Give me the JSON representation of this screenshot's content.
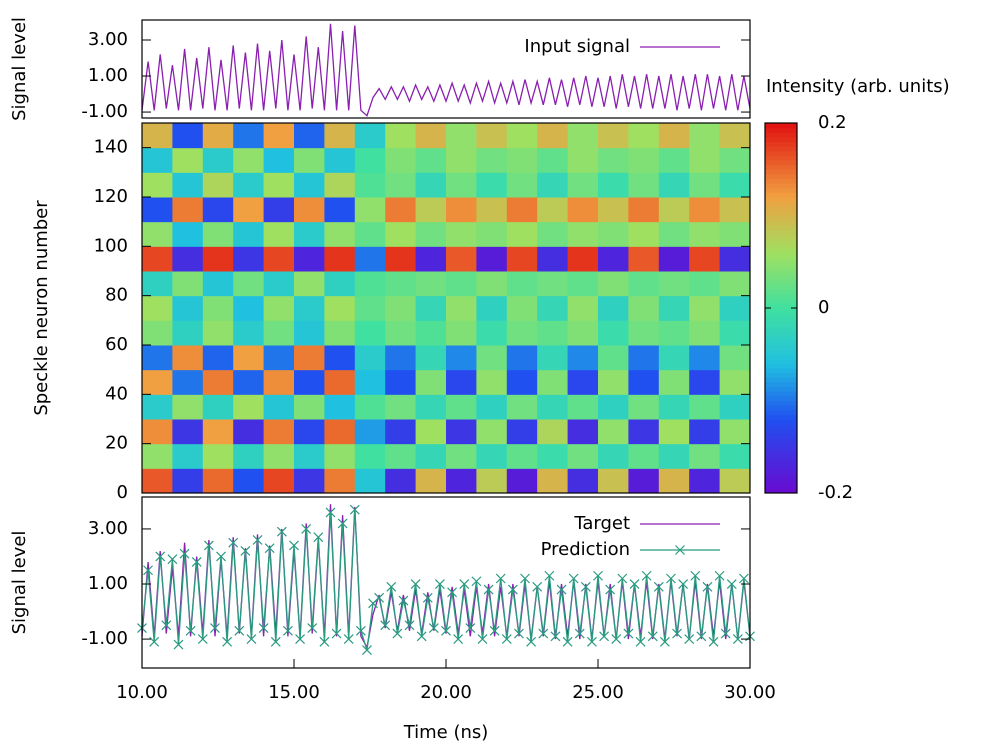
{
  "chart_data": [
    {
      "type": "line",
      "ylabel": "Signal level",
      "legend": "upper right",
      "xlim": [
        10,
        30
      ],
      "ylim": [
        -1.33,
        4.11
      ],
      "yticks": [
        {
          "value": 3,
          "label": "3.00"
        },
        {
          "value": 1,
          "label": "1.00"
        },
        {
          "value": -1,
          "label": "-1.00"
        }
      ],
      "x": [
        10,
        10.2,
        10.4,
        10.6,
        10.8,
        11,
        11.2,
        11.4,
        11.6,
        11.8,
        12,
        12.2,
        12.4,
        12.6,
        12.8,
        13,
        13.2,
        13.4,
        13.6,
        13.8,
        14,
        14.2,
        14.4,
        14.6,
        14.8,
        15,
        15.2,
        15.4,
        15.6,
        15.8,
        16,
        16.2,
        16.4,
        16.6,
        16.8,
        17,
        17.2,
        17.4,
        17.6,
        17.8,
        18,
        18.2,
        18.4,
        18.6,
        18.8,
        19,
        19.2,
        19.4,
        19.6,
        19.8,
        20,
        20.2,
        20.4,
        20.6,
        20.8,
        21,
        21.2,
        21.4,
        21.6,
        21.8,
        22,
        22.2,
        22.4,
        22.6,
        22.8,
        23,
        23.2,
        23.4,
        23.6,
        23.8,
        24,
        24.2,
        24.4,
        24.6,
        24.8,
        25,
        25.2,
        25.4,
        25.6,
        25.8,
        26,
        26.2,
        26.4,
        26.6,
        26.8,
        27,
        27.2,
        27.4,
        27.6,
        27.8,
        28,
        28.2,
        28.4,
        28.6,
        28.8,
        29,
        29.2,
        29.4,
        29.6,
        29.8,
        30
      ],
      "series": [
        {
          "name": "Input signal",
          "color": "#8a1fb0",
          "values": [
            -0.9,
            1.8,
            -0.9,
            2.2,
            -0.8,
            1.6,
            -0.9,
            2.5,
            -0.9,
            2.0,
            -0.8,
            2.6,
            -0.9,
            1.9,
            -0.9,
            2.7,
            -0.8,
            2.3,
            -0.9,
            2.8,
            -0.9,
            2.4,
            -0.8,
            3.0,
            -0.9,
            2.2,
            -0.9,
            3.2,
            -0.8,
            2.6,
            -0.9,
            3.9,
            -0.9,
            3.5,
            -0.9,
            3.8,
            -0.9,
            -1.2,
            -0.2,
            0.3,
            -0.3,
            0.4,
            -0.3,
            0.4,
            -0.4,
            0.5,
            -0.3,
            0.4,
            -0.4,
            0.5,
            -0.4,
            0.6,
            -0.4,
            0.5,
            -0.5,
            0.6,
            -0.4,
            0.7,
            -0.5,
            0.6,
            -0.5,
            0.7,
            -0.6,
            0.8,
            -0.5,
            0.7,
            -0.6,
            0.9,
            -0.6,
            0.8,
            -0.7,
            0.9,
            -0.6,
            1.0,
            -0.7,
            0.9,
            -0.7,
            1.0,
            -0.8,
            1.1,
            -0.7,
            1.0,
            -0.8,
            1.1,
            -0.8,
            1.0,
            -0.8,
            1.1,
            -0.9,
            1.0,
            -0.8,
            1.1,
            -0.9,
            1.1,
            -0.8,
            1.0,
            -0.9,
            1.1,
            -0.9,
            1.0,
            -0.8
          ]
        }
      ]
    },
    {
      "type": "heatmap",
      "ylabel": "Speckle neuron number",
      "colorbar_label": "Intensity (arb. units)",
      "xlim": [
        10,
        30
      ],
      "ylim": [
        0,
        150
      ],
      "yticks": [
        0,
        20,
        40,
        60,
        80,
        100,
        120,
        140
      ],
      "clim": [
        -0.2,
        0.2
      ],
      "cticks": [
        0.2,
        0,
        -0.2
      ],
      "x": [
        10,
        11,
        12,
        13,
        14,
        15,
        16,
        17,
        18,
        19,
        20,
        21,
        22,
        23,
        24,
        25,
        26,
        27,
        28,
        29
      ],
      "y": [
        0,
        10,
        20,
        30,
        40,
        50,
        60,
        70,
        80,
        90,
        100,
        110,
        120,
        130,
        140
      ],
      "z": [
        [
          0.16,
          -0.14,
          0.15,
          -0.12,
          0.17,
          -0.15,
          0.14,
          -0.05,
          -0.16,
          0.1,
          -0.17,
          0.08,
          -0.18,
          0.1,
          -0.16,
          0.09,
          -0.18,
          0.1,
          -0.17,
          0.08
        ],
        [
          0.05,
          -0.04,
          0.06,
          -0.03,
          0.05,
          -0.04,
          0.05,
          0.0,
          0.02,
          -0.02,
          0.03,
          -0.02,
          0.02,
          -0.01,
          0.03,
          -0.02,
          0.02,
          -0.02,
          0.03,
          -0.01
        ],
        [
          0.13,
          -0.15,
          0.12,
          -0.16,
          0.14,
          -0.13,
          0.15,
          -0.08,
          -0.14,
          0.06,
          -0.15,
          0.05,
          -0.14,
          0.07,
          -0.16,
          0.05,
          -0.15,
          0.06,
          -0.14,
          0.05
        ],
        [
          -0.04,
          0.05,
          -0.03,
          0.06,
          -0.05,
          0.04,
          -0.06,
          0.01,
          0.03,
          -0.02,
          0.02,
          -0.03,
          0.03,
          -0.02,
          0.02,
          -0.03,
          0.03,
          -0.02,
          0.02,
          -0.03
        ],
        [
          0.12,
          -0.1,
          0.14,
          -0.11,
          0.13,
          -0.12,
          0.15,
          -0.06,
          -0.12,
          0.04,
          -0.13,
          0.05,
          -0.12,
          0.04,
          -0.13,
          0.05,
          -0.12,
          0.04,
          -0.13,
          0.05
        ],
        [
          -0.1,
          0.13,
          -0.11,
          0.12,
          -0.1,
          0.14,
          -0.12,
          -0.04,
          -0.1,
          -0.02,
          -0.09,
          0.03,
          -0.1,
          -0.02,
          -0.09,
          0.02,
          -0.1,
          -0.02,
          -0.09,
          0.03
        ],
        [
          0.04,
          -0.03,
          0.05,
          -0.04,
          0.03,
          -0.05,
          0.04,
          0.0,
          0.03,
          0.01,
          0.04,
          -0.01,
          0.03,
          0.02,
          0.04,
          -0.01,
          0.03,
          0.02,
          0.04,
          -0.01
        ],
        [
          0.06,
          -0.05,
          0.04,
          -0.06,
          0.05,
          -0.04,
          0.06,
          0.02,
          0.04,
          -0.02,
          0.05,
          -0.03,
          0.04,
          -0.02,
          0.05,
          -0.03,
          0.04,
          -0.02,
          0.05,
          -0.03
        ],
        [
          -0.03,
          0.04,
          -0.05,
          0.03,
          -0.04,
          0.05,
          -0.03,
          0.01,
          0.02,
          0.03,
          0.02,
          0.04,
          0.02,
          0.03,
          0.02,
          0.04,
          0.02,
          0.03,
          0.02,
          0.04
        ],
        [
          0.17,
          -0.16,
          0.18,
          -0.15,
          0.17,
          -0.17,
          0.18,
          -0.1,
          0.18,
          -0.17,
          0.16,
          -0.18,
          0.17,
          -0.16,
          0.18,
          -0.17,
          0.16,
          -0.18,
          0.17,
          -0.16
        ],
        [
          0.05,
          -0.06,
          0.04,
          -0.05,
          0.06,
          -0.04,
          0.05,
          0.02,
          0.06,
          0.03,
          0.05,
          0.04,
          0.06,
          0.03,
          0.05,
          0.04,
          0.06,
          0.03,
          0.05,
          0.04
        ],
        [
          -0.12,
          0.14,
          -0.13,
          0.12,
          -0.14,
          0.13,
          -0.12,
          0.05,
          0.14,
          0.08,
          0.13,
          0.09,
          0.14,
          0.08,
          0.13,
          0.09,
          0.14,
          0.08,
          0.13,
          0.09
        ],
        [
          0.06,
          -0.05,
          0.07,
          -0.04,
          0.06,
          -0.05,
          0.07,
          0.01,
          0.03,
          -0.02,
          0.03,
          -0.01,
          0.03,
          -0.02,
          0.03,
          -0.01,
          0.03,
          -0.02,
          0.03,
          -0.01
        ],
        [
          -0.05,
          0.06,
          -0.04,
          0.05,
          -0.06,
          0.04,
          -0.05,
          0.0,
          0.04,
          0.02,
          0.05,
          0.03,
          0.04,
          0.02,
          0.05,
          0.03,
          0.04,
          0.02,
          0.05,
          0.03
        ],
        [
          0.1,
          -0.12,
          0.11,
          -0.1,
          0.12,
          -0.11,
          0.1,
          -0.04,
          0.06,
          0.1,
          0.05,
          0.09,
          0.06,
          0.1,
          0.05,
          0.09,
          0.06,
          0.1,
          0.05,
          0.09
        ]
      ]
    },
    {
      "type": "line",
      "ylabel": "Signal level",
      "xlabel": "Time (ns)",
      "legend": "upper right",
      "xlim": [
        10,
        30
      ],
      "ylim": [
        -2.05,
        4.16
      ],
      "xticks": [
        {
          "value": 10,
          "label": "10.00"
        },
        {
          "value": 15,
          "label": "15.00"
        },
        {
          "value": 20,
          "label": "20.00"
        },
        {
          "value": 25,
          "label": "25.00"
        },
        {
          "value": 30,
          "label": "30.00"
        }
      ],
      "yticks": [
        {
          "value": 3,
          "label": "3.00"
        },
        {
          "value": 1,
          "label": "1.00"
        },
        {
          "value": -1,
          "label": "-1.00"
        }
      ],
      "x": [
        10,
        10.2,
        10.4,
        10.6,
        10.8,
        11,
        11.2,
        11.4,
        11.6,
        11.8,
        12,
        12.2,
        12.4,
        12.6,
        12.8,
        13,
        13.2,
        13.4,
        13.6,
        13.8,
        14,
        14.2,
        14.4,
        14.6,
        14.8,
        15,
        15.2,
        15.4,
        15.6,
        15.8,
        16,
        16.2,
        16.4,
        16.6,
        16.8,
        17,
        17.2,
        17.4,
        17.6,
        17.8,
        18,
        18.2,
        18.4,
        18.6,
        18.8,
        19,
        19.2,
        19.4,
        19.6,
        19.8,
        20,
        20.2,
        20.4,
        20.6,
        20.8,
        21,
        21.2,
        21.4,
        21.6,
        21.8,
        22,
        22.2,
        22.4,
        22.6,
        22.8,
        23,
        23.2,
        23.4,
        23.6,
        23.8,
        24,
        24.2,
        24.4,
        24.6,
        24.8,
        25,
        25.2,
        25.4,
        25.6,
        25.8,
        26,
        26.2,
        26.4,
        26.6,
        26.8,
        27,
        27.2,
        27.4,
        27.6,
        27.8,
        28,
        28.2,
        28.4,
        28.6,
        28.8,
        29,
        29.2,
        29.4,
        29.6,
        29.8,
        30
      ],
      "series": [
        {
          "name": "Target",
          "color": "#8a1fb0",
          "values": [
            -0.9,
            1.8,
            -0.9,
            2.2,
            -0.8,
            1.6,
            -0.9,
            2.5,
            -0.9,
            2.0,
            -0.8,
            2.6,
            -0.9,
            1.9,
            -0.9,
            2.7,
            -0.8,
            2.3,
            -0.9,
            2.8,
            -0.9,
            2.4,
            -0.8,
            3.0,
            -0.9,
            2.2,
            -0.9,
            3.2,
            -0.8,
            2.6,
            -0.9,
            3.9,
            -0.9,
            3.5,
            -0.9,
            3.8,
            -0.9,
            -1.3,
            -0.1,
            0.6,
            -0.6,
            0.7,
            -0.7,
            0.6,
            -0.7,
            0.8,
            -0.8,
            0.7,
            -0.7,
            0.8,
            -0.8,
            0.9,
            -0.8,
            0.8,
            -0.9,
            0.9,
            -0.8,
            1.0,
            -0.9,
            0.9,
            -0.9,
            1.0,
            -0.9,
            1.0,
            -1.0,
            0.9,
            -0.9,
            1.1,
            -1.0,
            1.0,
            -0.9,
            1.1,
            -1.0,
            1.0,
            -1.0,
            1.1,
            -0.9,
            1.0,
            -1.0,
            1.1,
            -1.0,
            1.0,
            -0.9,
            1.1,
            -1.0,
            1.0,
            -1.0,
            1.1,
            -0.9,
            1.0,
            -1.0,
            1.1,
            -1.0,
            1.0,
            -0.9,
            1.1,
            -1.0,
            1.0,
            -1.0,
            1.1,
            -0.9
          ]
        },
        {
          "name": "Prediction",
          "color": "#2a9a80",
          "marker": "x",
          "values": [
            -0.6,
            1.5,
            -1.1,
            2.0,
            -0.5,
            1.9,
            -1.2,
            2.1,
            -0.7,
            1.8,
            -1.0,
            2.4,
            -0.6,
            2.0,
            -1.1,
            2.5,
            -0.7,
            2.2,
            -1.0,
            2.6,
            -0.6,
            2.3,
            -1.1,
            2.9,
            -0.7,
            2.4,
            -1.0,
            3.0,
            -0.6,
            2.7,
            -1.1,
            3.6,
            -0.8,
            3.2,
            -1.0,
            3.7,
            -0.7,
            -1.4,
            0.3,
            0.5,
            -0.5,
            0.9,
            -0.8,
            0.4,
            -0.5,
            1.0,
            -0.9,
            0.5,
            -0.6,
            1.0,
            -0.7,
            0.7,
            -1.0,
            1.0,
            -0.6,
            1.1,
            -1.0,
            0.8,
            -0.7,
            1.2,
            -1.0,
            0.8,
            -0.8,
            1.2,
            -1.1,
            0.9,
            -0.8,
            1.3,
            -0.9,
            0.8,
            -1.1,
            1.2,
            -0.8,
            0.9,
            -1.1,
            1.3,
            -0.9,
            0.8,
            -1.0,
            1.2,
            -0.8,
            1.0,
            -1.1,
            1.3,
            -0.9,
            0.9,
            -1.1,
            1.2,
            -0.8,
            1.0,
            -1.0,
            1.3,
            -0.9,
            0.9,
            -1.1,
            1.3,
            -0.8,
            1.0,
            -1.0,
            1.2,
            -0.9
          ]
        }
      ]
    }
  ]
}
